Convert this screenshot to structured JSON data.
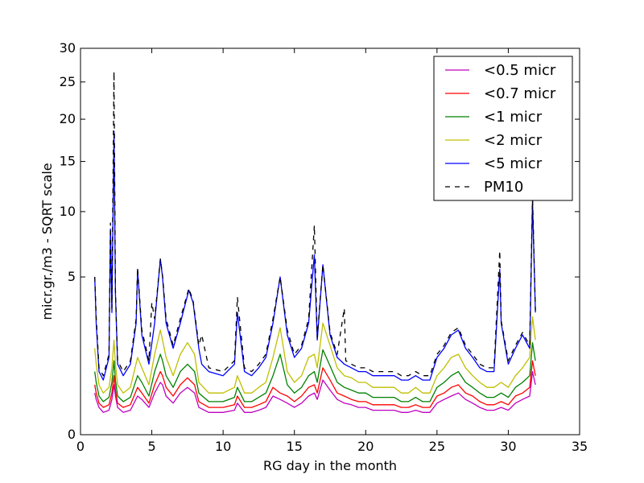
{
  "chart_data": {
    "type": "line",
    "xlabel": "RG day in the month",
    "ylabel": "micr.gr./m3 - SQRT scale",
    "xlim": [
      0,
      35
    ],
    "ylim": [
      0,
      30
    ],
    "y_scale": "sqrt",
    "xticks": [
      0,
      5,
      10,
      15,
      20,
      25,
      30,
      35
    ],
    "yticks": [
      0,
      5,
      10,
      15,
      20,
      25,
      30
    ],
    "grid": false,
    "legend_position": "upper right",
    "series": [
      {
        "name": "<0.5 micr",
        "color": "#bf00bf",
        "style": "solid",
        "x": [
          1.0,
          1.1,
          1.3,
          1.6,
          2.0,
          2.2,
          2.35,
          2.45,
          2.6,
          3.0,
          3.5,
          4.0,
          4.3,
          4.8,
          5.2,
          5.6,
          5.75,
          6.0,
          6.5,
          7.0,
          7.5,
          8.0,
          8.3,
          9.0,
          10.0,
          10.8,
          11.0,
          11.5,
          12.0,
          12.5,
          13.0,
          13.5,
          14.0,
          14.5,
          15.0,
          15.5,
          16.0,
          16.4,
          16.6,
          17.0,
          17.5,
          18.0,
          18.5,
          19.0,
          19.5,
          20.0,
          20.5,
          21.0,
          21.5,
          22.0,
          22.5,
          23.0,
          23.5,
          24.0,
          24.5,
          25.0,
          25.5,
          26.0,
          26.5,
          27.0,
          27.5,
          28.0,
          28.5,
          29.0,
          29.5,
          30.0,
          30.5,
          31.0,
          31.5,
          31.7,
          31.9
        ],
        "y": [
          0.35,
          0.25,
          0.15,
          0.1,
          0.12,
          0.25,
          0.5,
          0.3,
          0.15,
          0.1,
          0.12,
          0.3,
          0.25,
          0.15,
          0.35,
          0.55,
          0.5,
          0.3,
          0.2,
          0.35,
          0.45,
          0.35,
          0.15,
          0.1,
          0.1,
          0.12,
          0.2,
          0.1,
          0.1,
          0.12,
          0.15,
          0.3,
          0.25,
          0.2,
          0.15,
          0.2,
          0.3,
          0.35,
          0.25,
          0.6,
          0.4,
          0.25,
          0.2,
          0.18,
          0.15,
          0.15,
          0.12,
          0.12,
          0.12,
          0.12,
          0.1,
          0.1,
          0.12,
          0.1,
          0.1,
          0.2,
          0.25,
          0.3,
          0.35,
          0.25,
          0.2,
          0.15,
          0.12,
          0.12,
          0.15,
          0.12,
          0.2,
          0.25,
          0.3,
          0.8,
          0.5
        ]
      },
      {
        "name": "<0.7 micr",
        "color": "#ff0000",
        "style": "solid",
        "x": [
          1.0,
          1.1,
          1.3,
          1.6,
          2.0,
          2.2,
          2.35,
          2.45,
          2.6,
          3.0,
          3.5,
          4.0,
          4.3,
          4.8,
          5.2,
          5.6,
          5.75,
          6.0,
          6.5,
          7.0,
          7.5,
          8.0,
          8.3,
          9.0,
          10.0,
          10.8,
          11.0,
          11.5,
          12.0,
          12.5,
          13.0,
          13.5,
          14.0,
          14.5,
          15.0,
          15.5,
          16.0,
          16.4,
          16.6,
          17.0,
          17.5,
          18.0,
          18.5,
          19.0,
          19.5,
          20.0,
          20.5,
          21.0,
          21.5,
          22.0,
          22.5,
          23.0,
          23.5,
          24.0,
          24.5,
          25.0,
          25.5,
          26.0,
          26.5,
          27.0,
          27.5,
          28.0,
          28.5,
          29.0,
          29.5,
          30.0,
          30.5,
          31.0,
          31.5,
          31.7,
          31.9
        ],
        "y": [
          0.5,
          0.35,
          0.2,
          0.15,
          0.18,
          0.35,
          0.7,
          0.4,
          0.2,
          0.15,
          0.18,
          0.45,
          0.35,
          0.2,
          0.5,
          0.8,
          0.7,
          0.45,
          0.3,
          0.5,
          0.65,
          0.5,
          0.22,
          0.15,
          0.15,
          0.18,
          0.3,
          0.15,
          0.15,
          0.18,
          0.22,
          0.45,
          0.35,
          0.3,
          0.22,
          0.3,
          0.45,
          0.5,
          0.35,
          0.9,
          0.6,
          0.35,
          0.3,
          0.25,
          0.22,
          0.22,
          0.18,
          0.18,
          0.18,
          0.18,
          0.15,
          0.15,
          0.18,
          0.15,
          0.15,
          0.3,
          0.35,
          0.45,
          0.5,
          0.35,
          0.3,
          0.22,
          0.18,
          0.18,
          0.22,
          0.18,
          0.3,
          0.35,
          0.45,
          1.1,
          0.7
        ]
      },
      {
        "name": "<1 micr",
        "color": "#008000",
        "style": "solid",
        "x": [
          1.0,
          1.1,
          1.3,
          1.6,
          2.0,
          2.2,
          2.35,
          2.45,
          2.6,
          3.0,
          3.5,
          4.0,
          4.3,
          4.8,
          5.2,
          5.6,
          5.75,
          6.0,
          6.5,
          7.0,
          7.5,
          8.0,
          8.3,
          9.0,
          10.0,
          10.8,
          11.0,
          11.5,
          12.0,
          12.5,
          13.0,
          13.5,
          14.0,
          14.5,
          15.0,
          15.5,
          16.0,
          16.4,
          16.6,
          17.0,
          17.5,
          18.0,
          18.5,
          19.0,
          19.5,
          20.0,
          20.5,
          21.0,
          21.5,
          22.0,
          22.5,
          23.0,
          23.5,
          24.0,
          24.5,
          25.0,
          25.5,
          26.0,
          26.5,
          27.0,
          27.5,
          28.0,
          28.5,
          29.0,
          29.5,
          30.0,
          30.5,
          31.0,
          31.5,
          31.7,
          31.9
        ],
        "y": [
          0.8,
          0.55,
          0.3,
          0.22,
          0.28,
          0.55,
          1.1,
          0.6,
          0.3,
          0.22,
          0.28,
          0.7,
          0.55,
          0.3,
          0.8,
          1.3,
          1.1,
          0.7,
          0.45,
          0.8,
          1.0,
          0.8,
          0.35,
          0.22,
          0.22,
          0.28,
          0.45,
          0.22,
          0.22,
          0.28,
          0.35,
          0.7,
          1.3,
          0.5,
          0.35,
          0.45,
          0.7,
          0.8,
          0.55,
          1.45,
          0.95,
          0.55,
          0.45,
          0.4,
          0.35,
          0.35,
          0.28,
          0.28,
          0.28,
          0.28,
          0.22,
          0.22,
          0.28,
          0.22,
          0.22,
          0.45,
          0.55,
          0.7,
          0.8,
          0.55,
          0.45,
          0.35,
          0.28,
          0.28,
          0.35,
          0.28,
          0.45,
          0.55,
          0.7,
          1.7,
          1.1
        ]
      },
      {
        "name": "<2 micr",
        "color": "#bfbf00",
        "style": "solid",
        "x": [
          1.0,
          1.1,
          1.3,
          1.6,
          2.0,
          2.2,
          2.35,
          2.45,
          2.6,
          3.0,
          3.5,
          4.0,
          4.3,
          4.8,
          5.2,
          5.6,
          5.75,
          6.0,
          6.5,
          7.0,
          7.5,
          8.0,
          8.3,
          9.0,
          10.0,
          10.8,
          11.0,
          11.5,
          12.0,
          12.5,
          13.0,
          13.5,
          14.0,
          14.5,
          15.0,
          15.5,
          16.0,
          16.4,
          16.6,
          17.0,
          17.5,
          18.0,
          18.5,
          19.0,
          19.5,
          20.0,
          20.5,
          21.0,
          21.5,
          22.0,
          22.5,
          23.0,
          23.5,
          24.0,
          24.5,
          25.0,
          25.5,
          26.0,
          26.5,
          27.0,
          27.5,
          28.0,
          28.5,
          29.0,
          29.5,
          30.0,
          30.5,
          31.0,
          31.5,
          31.7,
          31.9
        ],
        "y": [
          1.5,
          1.0,
          0.5,
          0.35,
          0.45,
          0.9,
          1.8,
          1.0,
          0.5,
          0.35,
          0.45,
          1.2,
          0.9,
          0.5,
          1.3,
          2.2,
          1.8,
          1.2,
          0.7,
          1.3,
          1.7,
          1.3,
          0.55,
          0.35,
          0.35,
          0.45,
          0.7,
          0.35,
          0.35,
          0.45,
          0.55,
          1.2,
          2.3,
          0.8,
          0.55,
          0.7,
          1.2,
          1.3,
          0.9,
          2.5,
          1.6,
          0.9,
          0.7,
          0.65,
          0.55,
          0.55,
          0.45,
          0.45,
          0.45,
          0.45,
          0.35,
          0.35,
          0.45,
          0.35,
          0.35,
          0.7,
          0.9,
          1.2,
          1.3,
          0.9,
          0.7,
          0.55,
          0.45,
          0.45,
          0.55,
          0.45,
          0.7,
          0.9,
          1.2,
          2.8,
          1.8
        ]
      },
      {
        "name": "<5 micr",
        "color": "#0000ff",
        "style": "solid",
        "x": [
          1.0,
          1.1,
          1.3,
          1.6,
          2.0,
          2.1,
          2.2,
          2.35,
          2.45,
          2.6,
          3.0,
          3.5,
          3.9,
          4.0,
          4.3,
          4.8,
          5.2,
          5.6,
          5.75,
          6.0,
          6.5,
          7.0,
          7.6,
          7.9,
          8.3,
          8.5,
          9.0,
          10.0,
          10.8,
          11.0,
          11.5,
          12.0,
          12.5,
          13.0,
          13.5,
          14.0,
          14.5,
          15.0,
          15.5,
          16.0,
          16.4,
          16.6,
          17.0,
          17.5,
          18.0,
          18.5,
          19.0,
          19.5,
          20.0,
          20.5,
          21.0,
          21.5,
          22.0,
          22.5,
          23.0,
          23.5,
          24.0,
          24.5,
          25.0,
          25.5,
          26.0,
          26.5,
          27.0,
          27.5,
          28.0,
          28.5,
          29.0,
          29.4,
          29.5,
          30.0,
          30.5,
          31.0,
          31.5,
          31.7,
          31.9
        ],
        "y": [
          5.0,
          2.5,
          0.8,
          0.6,
          1.2,
          8.5,
          3.0,
          18.5,
          4.0,
          1.0,
          0.7,
          1.0,
          2.5,
          5.5,
          2.0,
          1.0,
          2.5,
          6.2,
          5.0,
          2.5,
          1.5,
          2.5,
          4.2,
          3.5,
          1.5,
          1.0,
          0.8,
          0.7,
          1.0,
          3.0,
          0.8,
          0.7,
          0.9,
          1.2,
          2.5,
          5.0,
          2.0,
          1.2,
          1.5,
          2.5,
          6.5,
          1.8,
          5.8,
          2.0,
          1.2,
          1.0,
          0.9,
          0.8,
          0.8,
          0.7,
          0.7,
          0.7,
          0.7,
          0.6,
          0.6,
          0.7,
          0.6,
          0.6,
          1.2,
          1.5,
          2.0,
          2.2,
          1.5,
          1.2,
          0.9,
          0.8,
          0.8,
          5.5,
          2.5,
          1.0,
          1.5,
          2.0,
          1.5,
          11.0,
          3.0
        ]
      },
      {
        "name": "PM10",
        "color": "#000000",
        "style": "dashed",
        "x": [
          1.0,
          1.1,
          1.3,
          1.6,
          2.0,
          2.1,
          2.2,
          2.35,
          2.45,
          2.6,
          3.0,
          3.5,
          3.9,
          4.0,
          4.3,
          4.8,
          5.0,
          5.2,
          5.6,
          5.75,
          6.0,
          6.5,
          7.0,
          7.6,
          7.9,
          8.3,
          8.5,
          9.0,
          10.0,
          10.8,
          11.0,
          11.5,
          12.0,
          12.5,
          13.0,
          13.5,
          14.0,
          14.5,
          15.0,
          15.5,
          16.0,
          16.4,
          16.6,
          17.0,
          17.5,
          18.0,
          18.5,
          18.6,
          19.0,
          19.5,
          20.0,
          20.5,
          21.0,
          21.5,
          22.0,
          22.5,
          23.0,
          23.5,
          24.0,
          24.5,
          25.0,
          25.5,
          26.0,
          26.5,
          27.0,
          27.5,
          28.0,
          28.5,
          29.0,
          29.4,
          29.5,
          30.0,
          30.5,
          31.0,
          31.5,
          31.7,
          31.9
        ],
        "y": [
          5.0,
          2.8,
          0.9,
          0.7,
          1.3,
          9.0,
          3.2,
          26.5,
          4.2,
          1.1,
          0.8,
          1.1,
          2.7,
          5.6,
          2.2,
          1.1,
          3.5,
          2.7,
          6.2,
          5.1,
          2.7,
          1.6,
          2.7,
          4.3,
          3.6,
          1.6,
          2.0,
          0.9,
          0.8,
          1.1,
          3.8,
          0.9,
          0.8,
          1.0,
          1.3,
          2.7,
          5.0,
          2.2,
          1.3,
          1.6,
          2.7,
          8.8,
          1.9,
          5.8,
          2.1,
          1.3,
          3.2,
          1.1,
          1.0,
          0.9,
          0.9,
          0.8,
          0.8,
          0.8,
          0.8,
          0.7,
          0.7,
          0.8,
          0.7,
          0.7,
          1.3,
          1.6,
          2.1,
          2.3,
          1.6,
          1.3,
          1.0,
          0.9,
          0.9,
          6.8,
          2.6,
          1.1,
          1.6,
          2.1,
          1.6,
          11.5,
          3.1
        ]
      }
    ]
  }
}
